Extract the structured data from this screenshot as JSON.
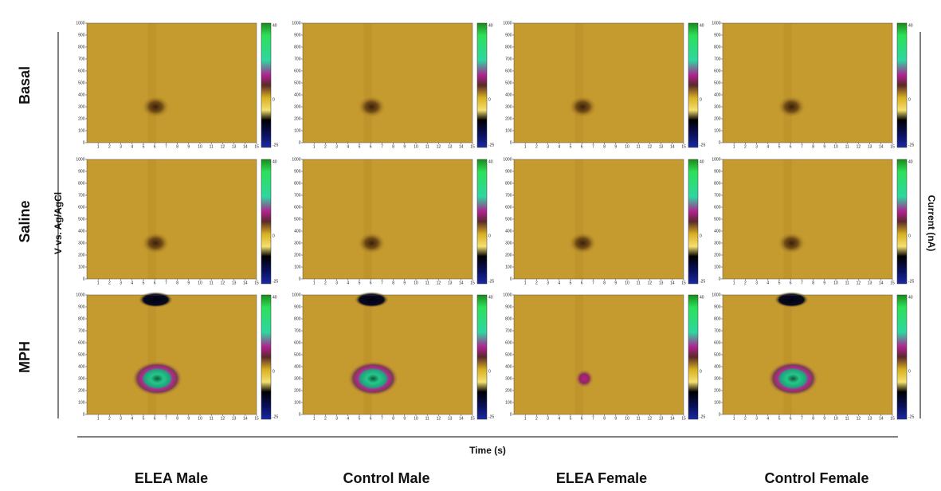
{
  "row_labels": [
    "Basal",
    "Saline",
    "MPH"
  ],
  "column_labels": [
    "ELEA Male",
    "Control Male",
    "ELEA Female",
    "Control Female"
  ],
  "y_axis_label": "V vs. Ag/AgCl",
  "x_axis_label": "Time (s)",
  "colorbar_label": "Current (nA)",
  "yticks": [
    0,
    100,
    200,
    300,
    400,
    500,
    600,
    700,
    800,
    900,
    1000
  ],
  "xticks": [
    1,
    2,
    3,
    4,
    5,
    6,
    7,
    8,
    9,
    10,
    11,
    12,
    13,
    14,
    15
  ],
  "colorbar_ticks": [
    40,
    0,
    -25
  ]
}
